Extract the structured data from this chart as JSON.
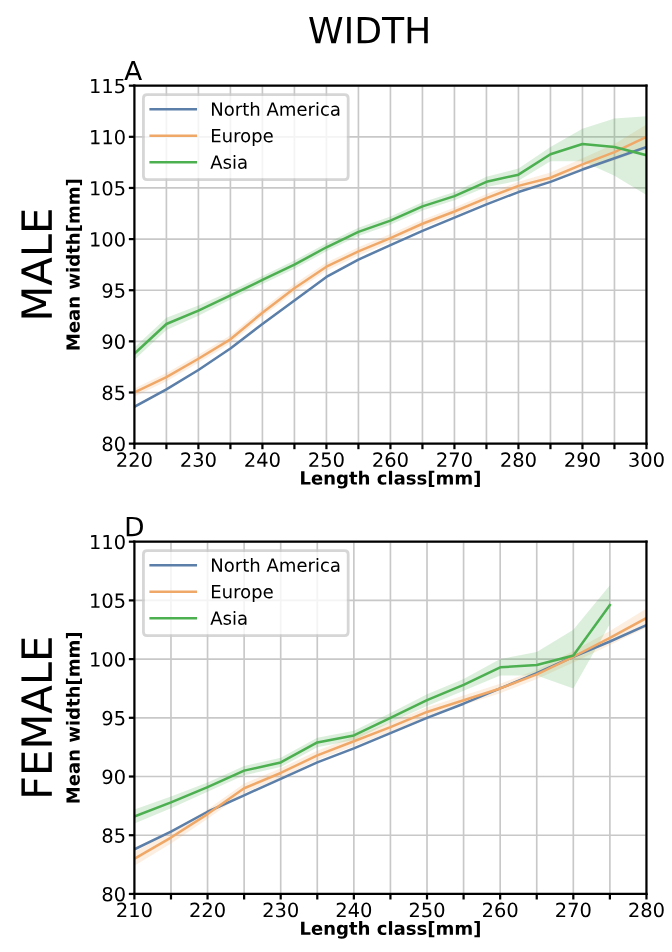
{
  "chart_data": [
    {
      "type": "line",
      "title": "WIDTH",
      "subtitle": "A",
      "xlabel": "Length class[mm]",
      "ylabel": "Mean width[mm]",
      "annotations": [
        "MALE"
      ],
      "x": [
        220,
        225,
        230,
        235,
        240,
        245,
        250,
        255,
        260,
        265,
        270,
        275,
        280,
        285,
        290,
        295,
        300
      ],
      "series": [
        {
          "name": "North America",
          "color": "#5b7fa8",
          "values": [
            83.6,
            85.3,
            87.2,
            89.3,
            91.7,
            94.0,
            96.3,
            98.0,
            99.4,
            100.8,
            102.1,
            103.4,
            104.6,
            105.6,
            106.8,
            107.9,
            109.0
          ]
        },
        {
          "name": "Europe",
          "color": "#f0a868",
          "values": [
            85.0,
            86.5,
            88.3,
            90.2,
            92.8,
            95.2,
            97.3,
            98.8,
            100.1,
            101.5,
            102.7,
            104.0,
            105.2,
            106.0,
            107.3,
            108.5,
            110.0
          ],
          "lower": [
            84.6,
            86.1,
            87.9,
            89.8,
            92.4,
            94.8,
            96.9,
            98.4,
            99.7,
            101.1,
            102.3,
            103.6,
            104.8,
            105.5,
            106.7,
            107.7,
            108.8
          ],
          "upper": [
            85.4,
            86.9,
            88.7,
            90.6,
            93.2,
            95.6,
            97.7,
            99.2,
            100.5,
            101.9,
            103.1,
            104.4,
            105.6,
            106.5,
            107.9,
            109.3,
            111.2
          ]
        },
        {
          "name": "Asia",
          "color": "#4caf50",
          "values": [
            88.8,
            91.7,
            93.0,
            94.5,
            96.0,
            97.5,
            99.2,
            100.7,
            101.8,
            103.2,
            104.2,
            105.6,
            106.3,
            108.3,
            109.3,
            109.0,
            108.2
          ],
          "lower": [
            88.2,
            91.1,
            92.5,
            94.1,
            95.6,
            97.1,
            98.8,
            100.3,
            101.4,
            102.8,
            103.8,
            105.1,
            105.7,
            107.6,
            107.6,
            106.2,
            104.3
          ],
          "upper": [
            89.4,
            92.3,
            93.5,
            94.9,
            96.4,
            97.9,
            99.6,
            101.1,
            102.2,
            103.6,
            104.6,
            106.1,
            106.9,
            109.0,
            110.8,
            111.8,
            112.0
          ]
        }
      ],
      "xlim": [
        220,
        300
      ],
      "ylim": [
        80,
        115
      ],
      "xticks": [
        220,
        {
          "value": 225,
          "label": null
        },
        230,
        {
          "value": 235,
          "label": null
        },
        240,
        {
          "value": 245,
          "label": null
        },
        250,
        {
          "value": 255,
          "label": null
        },
        260,
        {
          "value": 265,
          "label": null
        },
        270,
        {
          "value": 275,
          "label": null
        },
        280,
        {
          "value": 285,
          "label": null
        },
        290,
        {
          "value": 295,
          "label": null
        },
        300
      ],
      "yticks": [
        80,
        85,
        90,
        95,
        100,
        105,
        110,
        115
      ],
      "grid": true,
      "legend": "top left"
    },
    {
      "type": "line",
      "subtitle": "D",
      "xlabel": "Length class[mm]",
      "ylabel": "Mean width[mm]",
      "annotations": [
        "FEMALE"
      ],
      "x": [
        210,
        215,
        220,
        225,
        230,
        235,
        240,
        245,
        250,
        255,
        260,
        265,
        270,
        275,
        280
      ],
      "series": [
        {
          "name": "North America",
          "color": "#5b7fa8",
          "values": [
            83.8,
            85.3,
            87.0,
            88.4,
            89.8,
            91.2,
            92.4,
            93.7,
            95.0,
            96.2,
            97.5,
            98.8,
            100.2,
            101.5,
            102.9
          ]
        },
        {
          "name": "Europe",
          "color": "#f0a868",
          "values": [
            83.0,
            84.8,
            86.8,
            89.0,
            90.3,
            91.8,
            93.0,
            94.2,
            95.5,
            96.5,
            97.5,
            98.7,
            100.2,
            101.8,
            103.5
          ],
          "lower": [
            82.4,
            84.3,
            86.4,
            88.6,
            89.9,
            91.4,
            92.6,
            93.8,
            95.1,
            96.1,
            97.1,
            98.3,
            99.7,
            101.2,
            102.7
          ],
          "upper": [
            83.6,
            85.3,
            87.2,
            89.4,
            90.7,
            92.2,
            93.4,
            94.6,
            95.9,
            96.9,
            97.9,
            99.1,
            100.7,
            102.4,
            104.3
          ]
        },
        {
          "name": "Asia",
          "color": "#4caf50",
          "values": [
            86.6,
            87.8,
            89.1,
            90.5,
            91.2,
            92.9,
            93.5,
            95.0,
            96.5,
            97.8,
            99.3,
            99.5,
            100.3,
            104.6,
            null
          ],
          "lower": [
            86.0,
            87.3,
            88.7,
            90.1,
            90.8,
            92.5,
            93.1,
            94.6,
            96.0,
            97.3,
            98.6,
            98.6,
            97.5,
            103.0,
            null
          ],
          "upper": [
            87.2,
            88.3,
            89.5,
            90.9,
            91.6,
            93.3,
            93.9,
            95.4,
            97.0,
            98.3,
            100.0,
            100.6,
            102.5,
            106.3,
            null
          ]
        }
      ],
      "xlim": [
        210,
        280
      ],
      "ylim": [
        80,
        110
      ],
      "xticks": [
        210,
        {
          "value": 215,
          "label": null
        },
        220,
        {
          "value": 225,
          "label": null
        },
        230,
        {
          "value": 235,
          "label": null
        },
        240,
        {
          "value": 245,
          "label": null
        },
        250,
        {
          "value": 255,
          "label": null
        },
        260,
        {
          "value": 265,
          "label": null
        },
        270,
        {
          "value": 275,
          "label": null
        },
        280
      ],
      "yticks": [
        80,
        85,
        90,
        95,
        100,
        105,
        110
      ],
      "grid": true,
      "legend": "top left"
    }
  ]
}
